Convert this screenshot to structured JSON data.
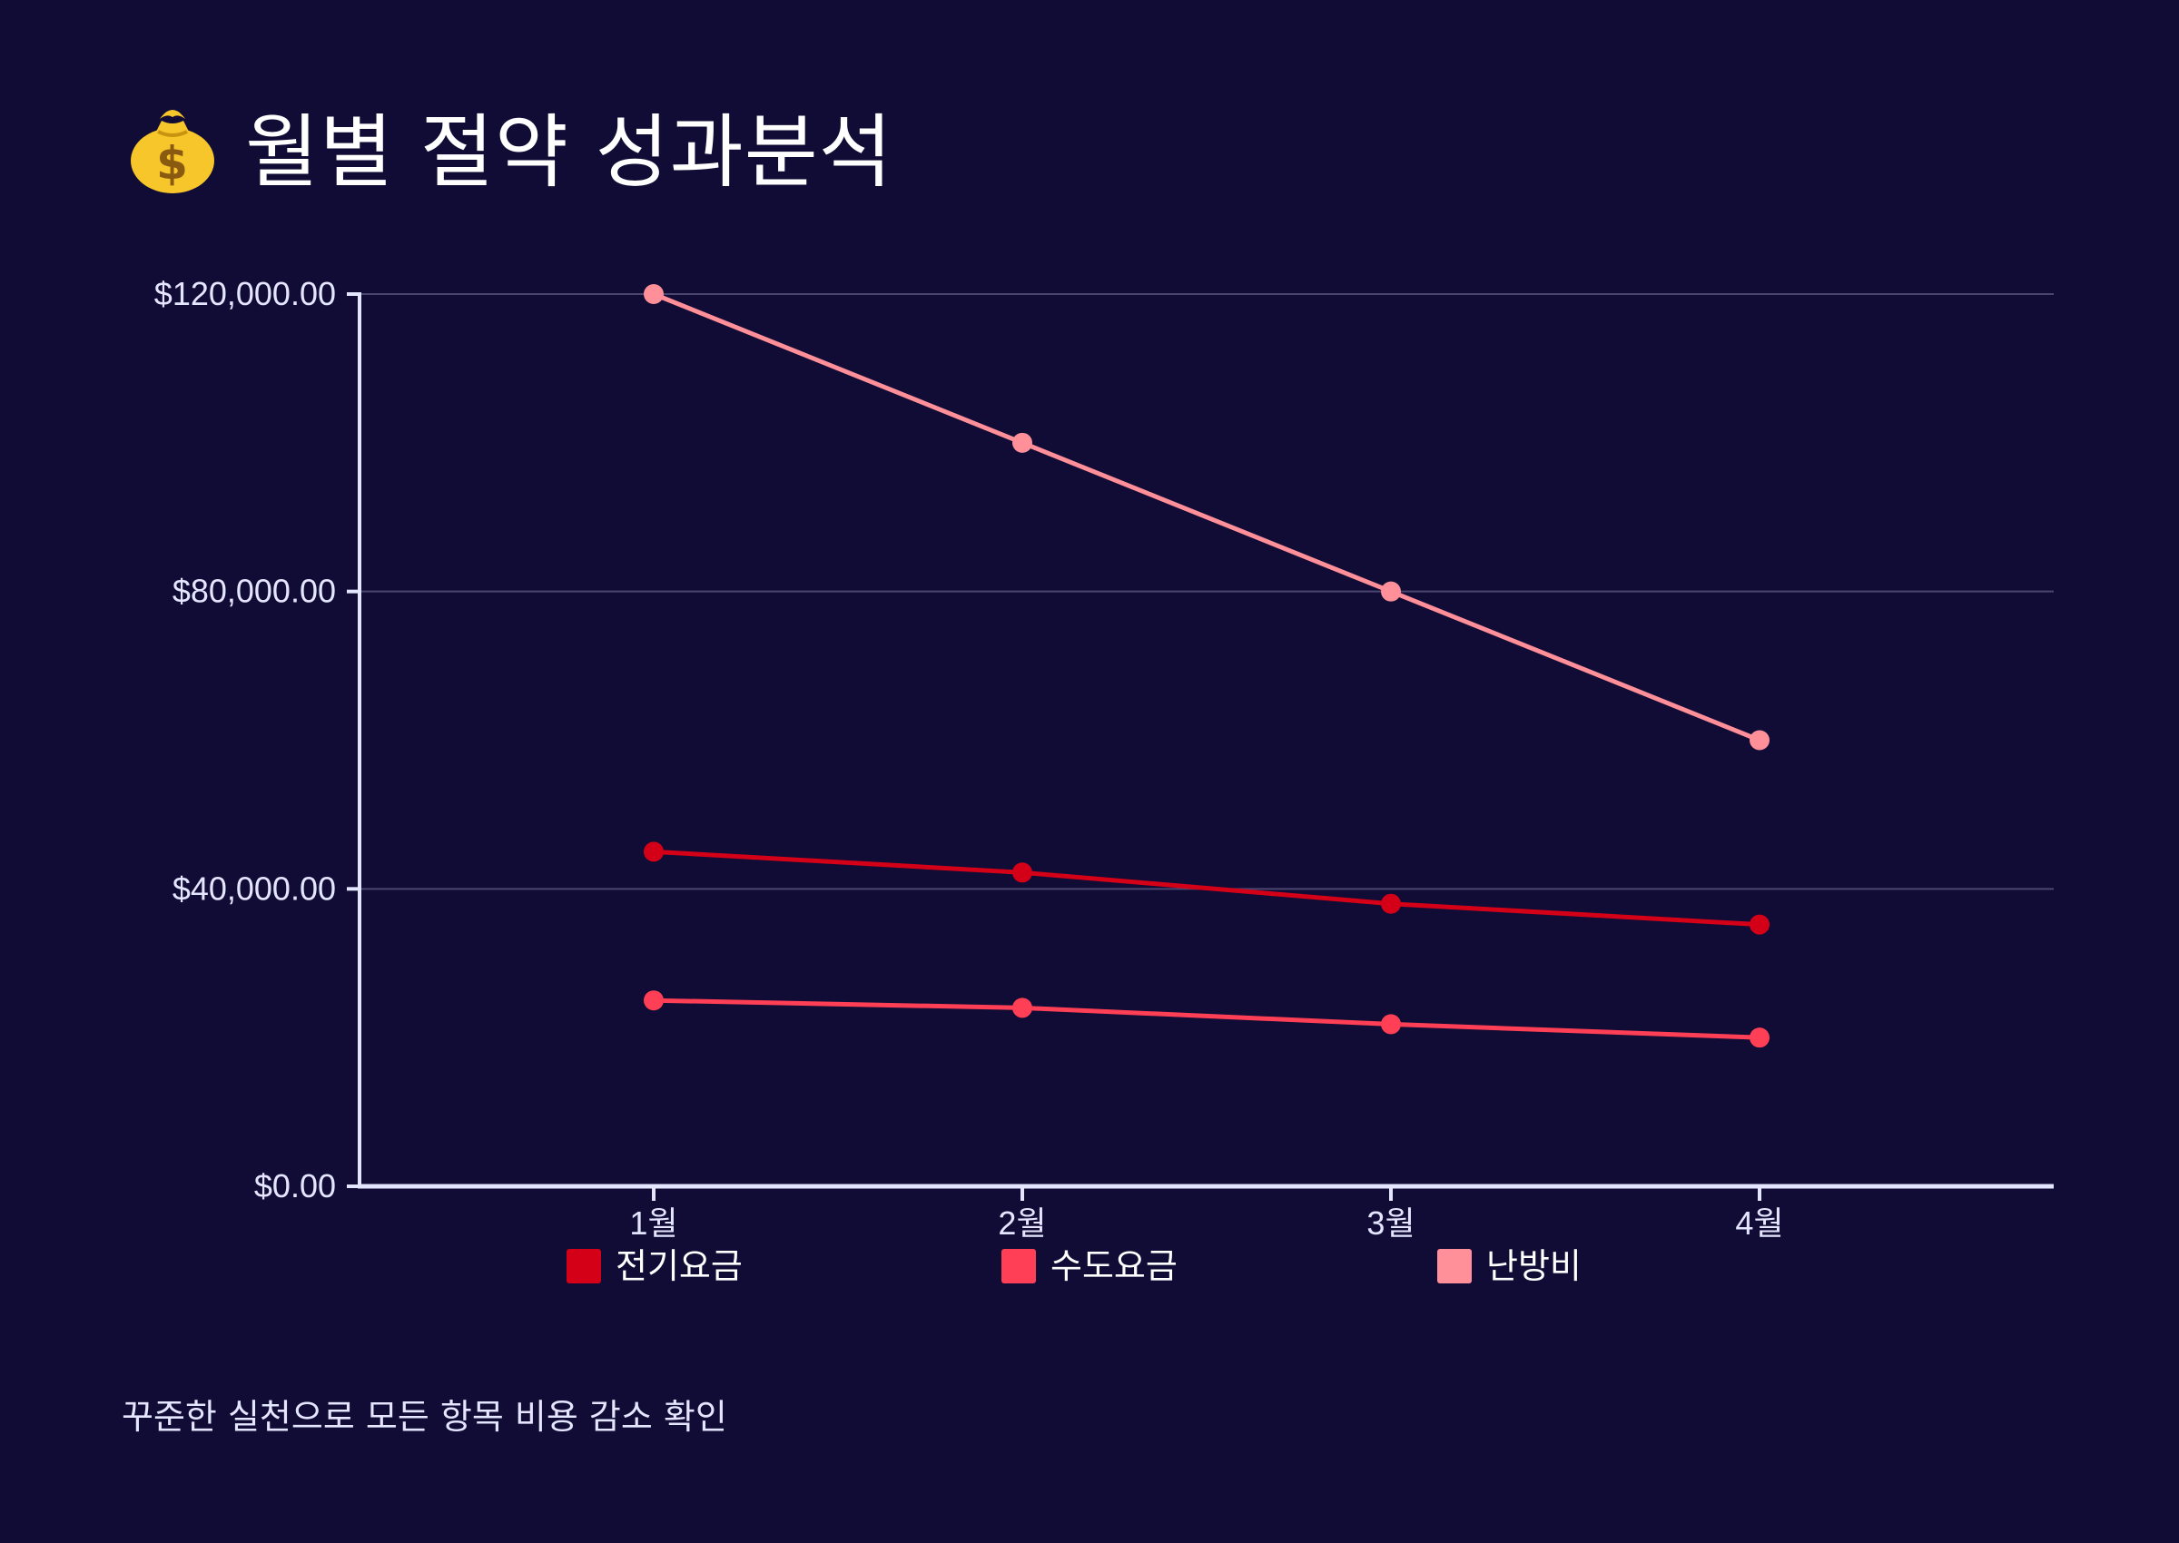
{
  "title": "월별 절약 성과분석",
  "title_icon": "money-bag-icon",
  "caption": "꾸준한 실천으로 모든 항목 비용 감소 확인",
  "colors": {
    "background": "#110c35",
    "axis": "#e4e6ff",
    "grid": "#4a4670",
    "text": "#ffffff",
    "icon_bag": "#f7c62b",
    "icon_symbol": "#8a5a10"
  },
  "chart_data": {
    "type": "line",
    "title": "월별 절약 성과분석",
    "categories": [
      "1월",
      "2월",
      "3월",
      "4월"
    ],
    "series": [
      {
        "name": "전기요금",
        "color": "#d40017",
        "values": [
          45000,
          42200,
          38000,
          35200
        ]
      },
      {
        "name": "수도요금",
        "color": "#ff3f55",
        "values": [
          25000,
          24000,
          21800,
          20000
        ]
      },
      {
        "name": "난방비",
        "color": "#ff8f98",
        "values": [
          120000,
          100000,
          80000,
          60000
        ]
      }
    ],
    "ylim": [
      0,
      120000
    ],
    "yticks": [
      0,
      40000,
      80000,
      120000
    ],
    "ytick_labels": [
      "$0.00",
      "$40,000.00",
      "$80,000.00",
      "$120,000.00"
    ],
    "grid": true,
    "legend_position": "bottom",
    "xlabel": "",
    "ylabel": ""
  }
}
